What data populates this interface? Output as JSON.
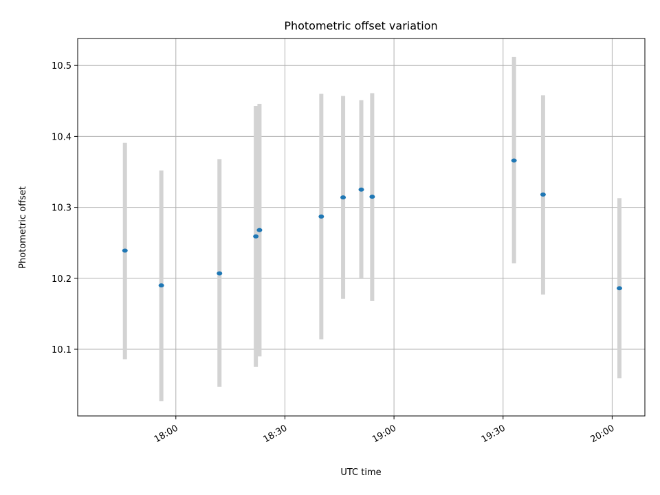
{
  "chart_data": {
    "type": "scatter",
    "title": "Photometric offset variation",
    "xlabel": "UTC time",
    "ylabel": "Photometric offset",
    "x_unit": "HH:MM UTC",
    "xlim": [
      "17:33",
      "20:09"
    ],
    "ylim": [
      10.006,
      10.538
    ],
    "x_ticks": [
      "18:00",
      "18:30",
      "19:00",
      "19:30",
      "20:00"
    ],
    "y_ticks": [
      10.1,
      10.2,
      10.3,
      10.4,
      10.5
    ],
    "y_tick_labels": [
      "10.1",
      "10.2",
      "10.3",
      "10.4",
      "10.5"
    ],
    "grid": true,
    "legend": "none",
    "series": [
      {
        "marker_color": "#1f77b4",
        "errorbar_color": "#d3d3d3",
        "points": [
          {
            "x": "17:46",
            "y": 10.239,
            "low": 10.086,
            "high": 10.391
          },
          {
            "x": "17:56",
            "y": 10.19,
            "low": 10.027,
            "high": 10.352
          },
          {
            "x": "18:12",
            "y": 10.207,
            "low": 10.047,
            "high": 10.368
          },
          {
            "x": "18:22",
            "y": 10.259,
            "low": 10.075,
            "high": 10.443
          },
          {
            "x": "18:23",
            "y": 10.268,
            "low": 10.09,
            "high": 10.446
          },
          {
            "x": "18:40",
            "y": 10.287,
            "low": 10.114,
            "high": 10.46
          },
          {
            "x": "18:46",
            "y": 10.314,
            "low": 10.171,
            "high": 10.457
          },
          {
            "x": "18:51",
            "y": 10.325,
            "low": 10.199,
            "high": 10.451
          },
          {
            "x": "18:54",
            "y": 10.315,
            "low": 10.168,
            "high": 10.461
          },
          {
            "x": "19:33",
            "y": 10.366,
            "low": 10.221,
            "high": 10.512
          },
          {
            "x": "19:41",
            "y": 10.318,
            "low": 10.177,
            "high": 10.458
          },
          {
            "x": "20:02",
            "y": 10.186,
            "low": 10.059,
            "high": 10.313
          }
        ]
      }
    ]
  }
}
